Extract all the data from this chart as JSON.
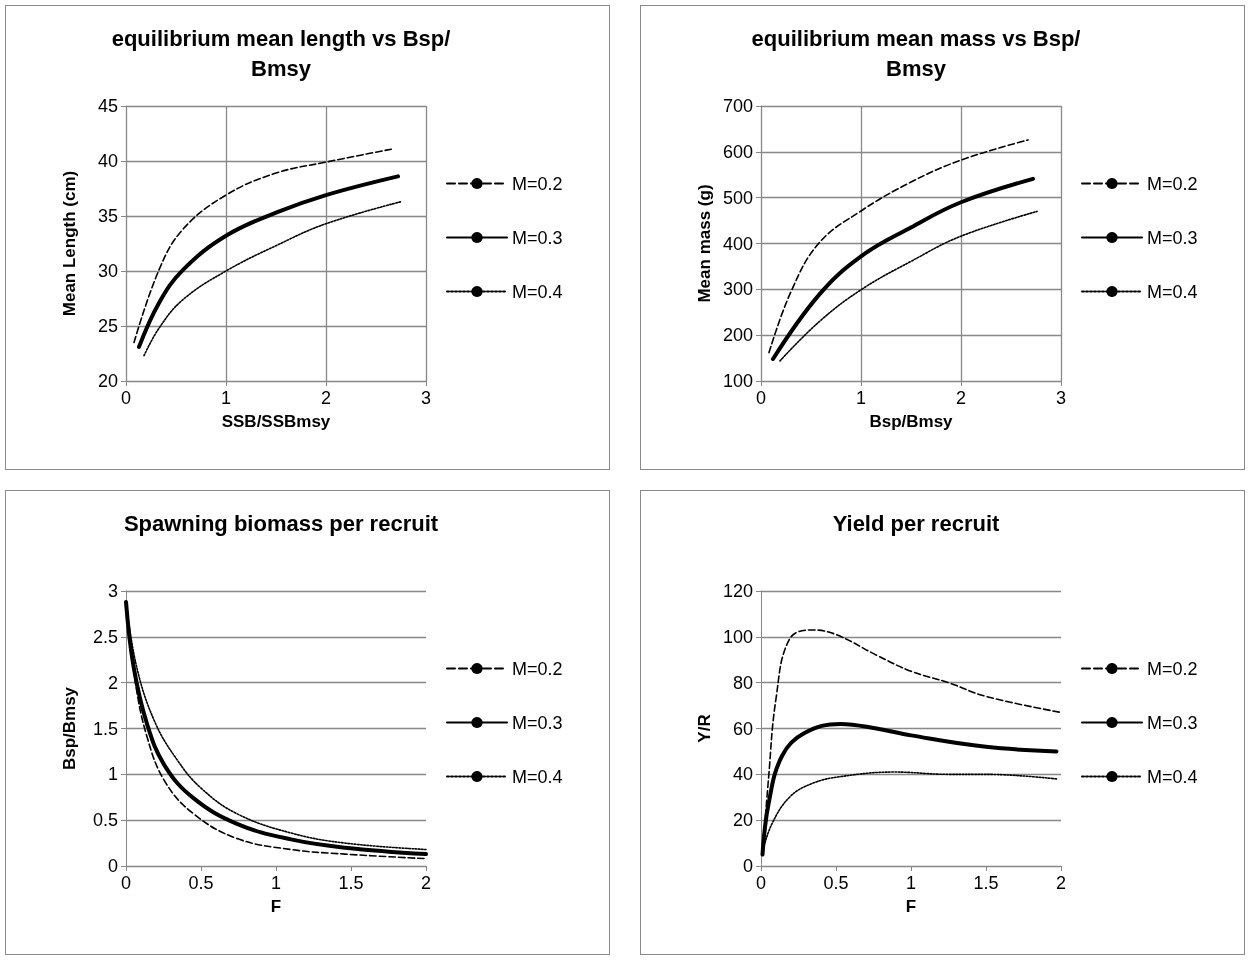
{
  "chart_data": [
    {
      "type": "line",
      "title": "equilibrium mean length vs Bsp/Bmsy",
      "xlabel": "SSB/SSBmsy",
      "ylabel": "Mean Length (cm)",
      "xlim": [
        0,
        3
      ],
      "xticks": [
        0,
        1,
        2,
        3
      ],
      "ylim": [
        20,
        45
      ],
      "yticks": [
        20,
        25,
        30,
        35,
        40,
        45
      ],
      "grid": true,
      "legend": "right",
      "marker": "none",
      "series": [
        {
          "name": "M=0.2",
          "color": "#000000",
          "line_style": "dashed",
          "x": [
            0.08,
            0.33,
            0.57,
            1,
            1.5,
            2,
            2.67
          ],
          "values": [
            23.5,
            30.1,
            33.8,
            36.9,
            38.9,
            39.9,
            41.1
          ]
        },
        {
          "name": "M=0.3",
          "color": "#000000",
          "line_style": "solid",
          "x": [
            0.13,
            0.33,
            0.57,
            1,
            1.5,
            2,
            2.72
          ],
          "values": [
            23.1,
            27.1,
            30.1,
            33.2,
            35.3,
            36.9,
            38.6
          ]
        },
        {
          "name": "M=0.4",
          "color": "#000000",
          "line_style": "dotted",
          "x": [
            0.18,
            0.33,
            0.57,
            1,
            1.5,
            2,
            2.75
          ],
          "values": [
            22.3,
            24.8,
            27.4,
            30.0,
            32.3,
            34.3,
            36.3
          ]
        }
      ]
    },
    {
      "type": "line",
      "title": "equilibrium mean mass vs Bsp/Bmsy",
      "xlabel": "Bsp/Bmsy",
      "ylabel": "Mean mass (g)",
      "xlim": [
        0,
        3
      ],
      "xticks": [
        0,
        1,
        2,
        3
      ],
      "ylim": [
        100,
        700
      ],
      "yticks": [
        100,
        200,
        300,
        400,
        500,
        600,
        700
      ],
      "grid": true,
      "legend": "right",
      "marker": "none",
      "series": [
        {
          "name": "M=0.2",
          "color": "#000000",
          "line_style": "dashed",
          "x": [
            0.08,
            0.3,
            0.58,
            1,
            1.5,
            2,
            2.67
          ],
          "values": [
            162,
            295,
            401,
            471,
            534,
            582,
            626
          ]
        },
        {
          "name": "M=0.3",
          "color": "#000000",
          "line_style": "solid",
          "x": [
            0.12,
            0.58,
            1,
            1.5,
            2,
            2.72
          ],
          "values": [
            148,
            288,
            372,
            435,
            490,
            541
          ]
        },
        {
          "name": "M=0.4",
          "color": "#000000",
          "line_style": "dotted",
          "x": [
            0.19,
            0.58,
            1,
            1.5,
            2,
            2.76
          ],
          "values": [
            144,
            229,
            299,
            361,
            416,
            470
          ]
        }
      ]
    },
    {
      "type": "line",
      "title": "Spawning biomass per recruit",
      "xlabel": "F",
      "ylabel": "Bsp/Bmsy",
      "xlim": [
        0,
        2
      ],
      "xticks": [
        0,
        0.5,
        1,
        1.5,
        2
      ],
      "ylim": [
        0,
        3
      ],
      "yticks": [
        0,
        0.5,
        1,
        1.5,
        2,
        2.5,
        3
      ],
      "grid": "y",
      "legend": "right",
      "marker": "none",
      "series": [
        {
          "name": "M=0.2",
          "color": "#000000",
          "line_style": "dashed",
          "x": [
            0,
            0.06,
            0.14,
            0.26,
            0.45,
            0.74,
            1.1,
            1.46,
            2
          ],
          "values": [
            2.88,
            2.03,
            1.41,
            0.92,
            0.57,
            0.3,
            0.18,
            0.13,
            0.08
          ]
        },
        {
          "name": "M=0.3",
          "color": "#000000",
          "line_style": "solid",
          "x": [
            0,
            0.05,
            0.14,
            0.26,
            0.45,
            0.74,
            1.1,
            1.46,
            2
          ],
          "values": [
            2.88,
            2.18,
            1.55,
            1.09,
            0.74,
            0.46,
            0.29,
            0.2,
            0.13
          ]
        },
        {
          "name": "M=0.4",
          "color": "#000000",
          "line_style": "dotted",
          "x": [
            0,
            0.07,
            0.19,
            0.34,
            0.5,
            0.74,
            1.1,
            1.46,
            2
          ],
          "values": [
            2.88,
            2.18,
            1.58,
            1.16,
            0.85,
            0.57,
            0.36,
            0.25,
            0.18
          ]
        }
      ]
    },
    {
      "type": "line",
      "title": "Yield per recruit",
      "xlabel": "F",
      "ylabel": "Y/R",
      "xlim": [
        0,
        2
      ],
      "xticks": [
        0,
        0.5,
        1,
        1.5,
        2
      ],
      "ylim": [
        0,
        120
      ],
      "yticks": [
        0,
        20,
        40,
        60,
        80,
        100,
        120
      ],
      "grid": "y",
      "legend": "right",
      "marker": "none",
      "series": [
        {
          "name": "M=0.2",
          "color": "#000000",
          "line_style": "dashed",
          "x": [
            0.01,
            0.05,
            0.1,
            0.19,
            0.34,
            0.5,
            0.77,
            1,
            1.25,
            1.5,
            2
          ],
          "values": [
            5,
            38,
            73,
            99,
            103,
            101,
            92,
            85,
            80,
            74,
            67
          ]
        },
        {
          "name": "M=0.3",
          "color": "#000000",
          "line_style": "solid",
          "x": [
            0.01,
            0.05,
            0.14,
            0.29,
            0.53,
            0.77,
            1,
            1.5,
            1.97
          ],
          "values": [
            5,
            27,
            48,
            58,
            62,
            60,
            57,
            52,
            50
          ]
        },
        {
          "name": "M=0.4",
          "color": "#000000",
          "line_style": "dotted",
          "x": [
            0.01,
            0.07,
            0.19,
            0.34,
            0.53,
            0.89,
            1.25,
            1.5,
            1.97
          ],
          "values": [
            6,
            18,
            30,
            36,
            39,
            41,
            40,
            40,
            38
          ]
        }
      ]
    }
  ]
}
